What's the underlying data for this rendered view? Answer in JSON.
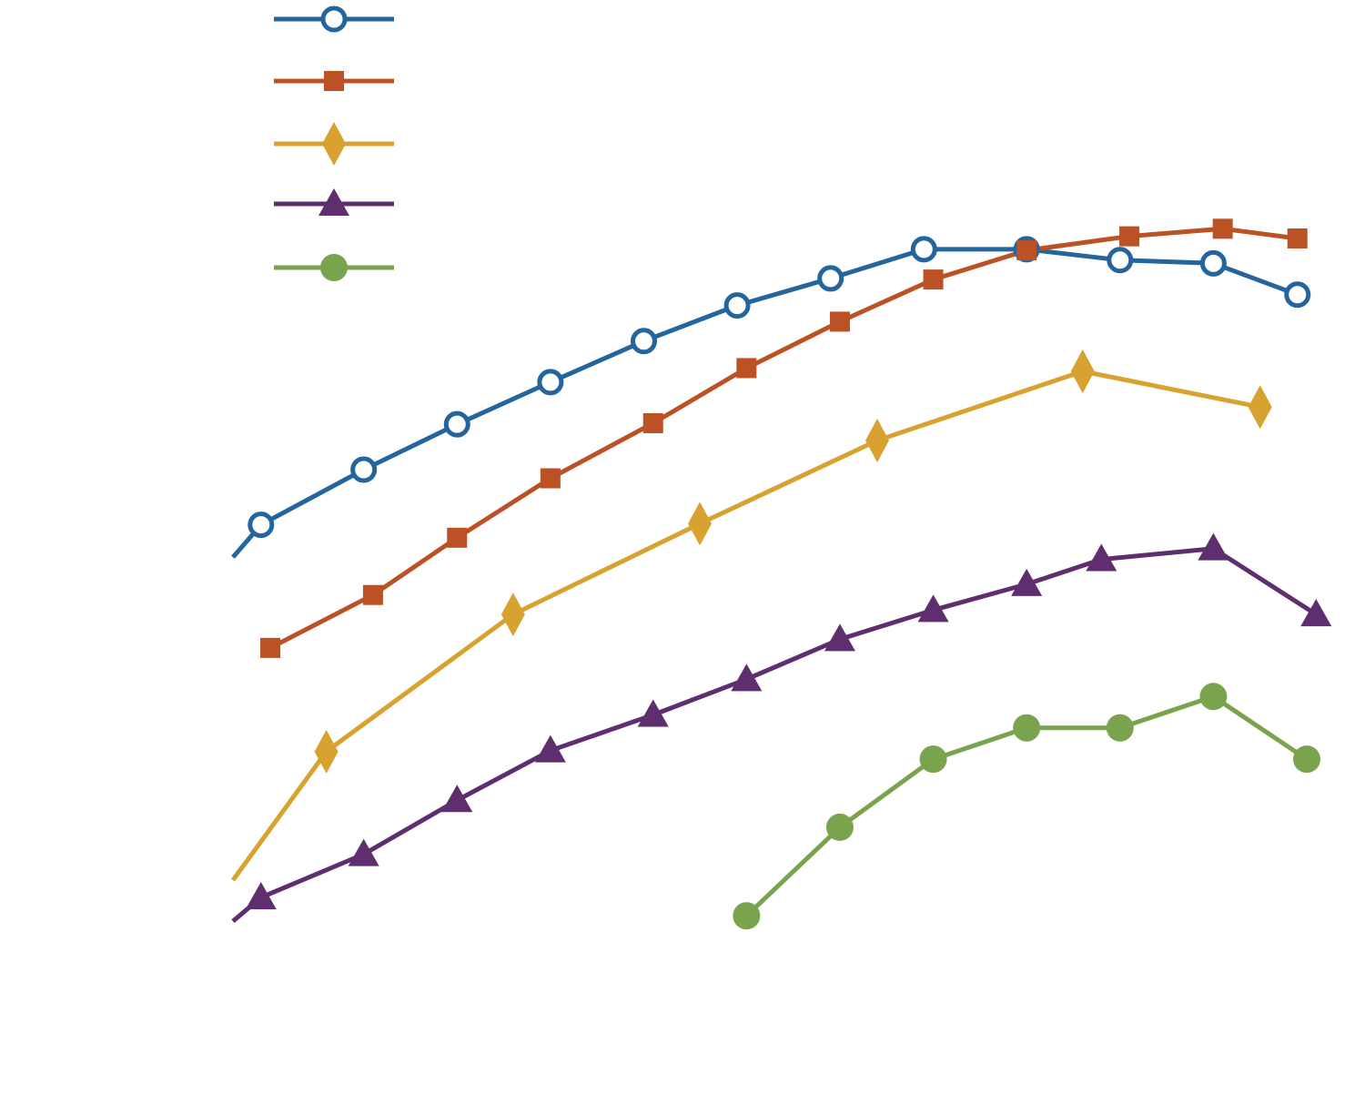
{
  "chart_data": {
    "type": "line",
    "title": "",
    "xlabel": "",
    "ylabel": "",
    "xlim": [
      0,
      11.5
    ],
    "ylim": [
      0,
      100
    ],
    "grid": false,
    "legend_placement": "top-left",
    "series": [
      {
        "color": "#23659c",
        "marker": "circle-open",
        "points": [
          [
            0,
            49.1
          ],
          [
            0.3,
            52.1
          ],
          [
            1.4,
            57.2
          ],
          [
            2.4,
            61.4
          ],
          [
            3.4,
            65.3
          ],
          [
            4.4,
            69.1
          ],
          [
            5.4,
            72.4
          ],
          [
            6.4,
            74.9
          ],
          [
            7.4,
            77.6
          ],
          [
            8.5,
            77.6
          ],
          [
            9.5,
            76.6
          ],
          [
            10.5,
            76.3
          ],
          [
            11.4,
            73.4
          ]
        ]
      },
      {
        "color": "#bc5125",
        "marker": "square",
        "points": [
          [
            0.4,
            40.7
          ],
          [
            1.5,
            45.6
          ],
          [
            2.4,
            50.9
          ],
          [
            3.4,
            56.4
          ],
          [
            4.5,
            61.5
          ],
          [
            5.5,
            66.6
          ],
          [
            6.5,
            70.9
          ],
          [
            7.5,
            74.8
          ],
          [
            8.5,
            77.5
          ],
          [
            9.6,
            78.8
          ],
          [
            10.6,
            79.5
          ],
          [
            11.4,
            78.6
          ]
        ]
      },
      {
        "color": "#d7a22f",
        "marker": "diamond",
        "points": [
          [
            0,
            19.2
          ],
          [
            1.0,
            31.1
          ],
          [
            3.0,
            43.8
          ],
          [
            5.0,
            52.2
          ],
          [
            6.9,
            59.9
          ],
          [
            9.1,
            66.3
          ],
          [
            11.0,
            63.0
          ]
        ]
      },
      {
        "color": "#5e2e6f",
        "marker": "triangle",
        "points": [
          [
            0,
            15.4
          ],
          [
            0.3,
            17.6
          ],
          [
            1.4,
            21.6
          ],
          [
            2.4,
            26.6
          ],
          [
            3.4,
            31.2
          ],
          [
            4.5,
            34.5
          ],
          [
            5.5,
            37.8
          ],
          [
            6.5,
            41.5
          ],
          [
            7.5,
            44.2
          ],
          [
            8.5,
            46.6
          ],
          [
            9.3,
            48.9
          ],
          [
            10.5,
            49.9
          ],
          [
            11.6,
            43.8
          ]
        ]
      },
      {
        "color": "#7aa34e",
        "marker": "circle",
        "points": [
          [
            5.5,
            15.9
          ],
          [
            6.5,
            24.1
          ],
          [
            7.5,
            30.4
          ],
          [
            8.5,
            33.3
          ],
          [
            9.5,
            33.3
          ],
          [
            10.5,
            36.2
          ],
          [
            11.5,
            30.4
          ]
        ]
      }
    ]
  }
}
